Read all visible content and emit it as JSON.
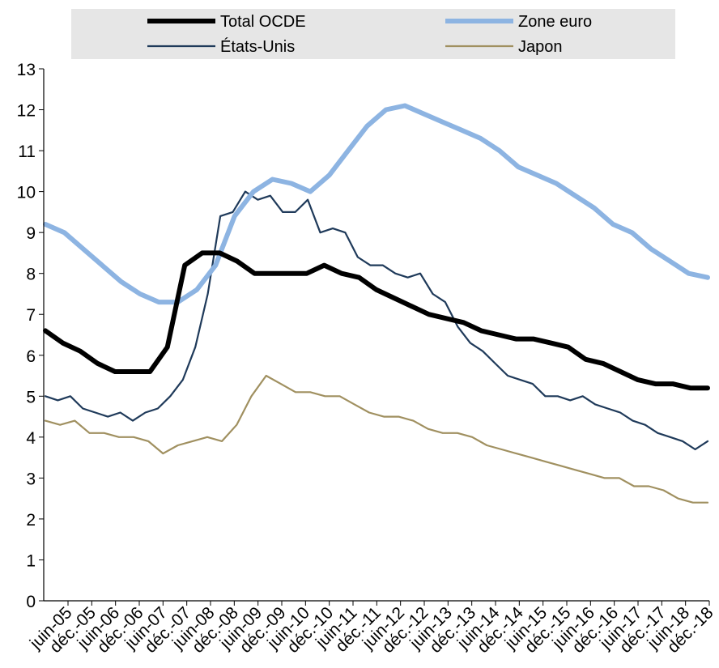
{
  "chart_data": {
    "type": "line",
    "title": "",
    "xlabel": "",
    "ylabel": "",
    "ylim": [
      0,
      13
    ],
    "yticks": [
      0,
      1,
      2,
      3,
      4,
      5,
      6,
      7,
      8,
      9,
      10,
      11,
      12,
      13
    ],
    "grid": false,
    "legend_position": "top",
    "x_tick_labels": [
      "juin-05",
      "déc.-05",
      "juin-06",
      "déc.-06",
      "juin-07",
      "déc.-07",
      "juin-08",
      "déc.-08",
      "juin-09",
      "déc.-09",
      "juin-10",
      "déc.-10",
      "juin-11",
      "déc.-11",
      "juin-12",
      "déc.-12",
      "juin-13",
      "déc.-13",
      "juin-14",
      "déc.-14",
      "juin-15",
      "déc.-15",
      "juin-16",
      "déc.-16",
      "juin-17",
      "déc.-17",
      "juin-18",
      "déc.-18"
    ],
    "series": [
      {
        "name": "Total OCDE",
        "color": "#000000",
        "width": 6,
        "values": [
          6.6,
          6.3,
          6.1,
          5.8,
          5.6,
          5.6,
          5.6,
          6.2,
          8.2,
          8.5,
          8.5,
          8.3,
          8.0,
          8.0,
          8.0,
          8.0,
          8.2,
          8.0,
          7.9,
          7.6,
          7.4,
          7.2,
          7.0,
          6.9,
          6.8,
          6.6,
          6.5,
          6.4,
          6.4,
          6.3,
          6.2,
          5.9,
          5.8,
          5.6,
          5.4,
          5.3,
          5.3,
          5.2,
          5.2
        ]
      },
      {
        "name": "Zone euro",
        "color": "#8db4e2",
        "width": 6,
        "values": [
          9.2,
          9.0,
          8.6,
          8.2,
          7.8,
          7.5,
          7.3,
          7.3,
          7.6,
          8.2,
          9.4,
          10.0,
          10.3,
          10.2,
          10.0,
          10.4,
          11.0,
          11.6,
          12.0,
          12.1,
          11.9,
          11.7,
          11.5,
          11.3,
          11.0,
          10.6,
          10.4,
          10.2,
          9.9,
          9.6,
          9.2,
          9.0,
          8.6,
          8.3,
          8.0,
          7.9
        ]
      },
      {
        "name": "États-Unis",
        "color": "#1f3a5a",
        "width": 2.2,
        "values": [
          5.0,
          4.9,
          5.0,
          4.7,
          4.6,
          4.5,
          4.6,
          4.4,
          4.6,
          4.7,
          5.0,
          5.4,
          6.2,
          7.5,
          9.4,
          9.5,
          10.0,
          9.8,
          9.9,
          9.5,
          9.5,
          9.8,
          9.0,
          9.1,
          9.0,
          8.4,
          8.2,
          8.2,
          8.0,
          7.9,
          8.0,
          7.5,
          7.3,
          6.7,
          6.3,
          6.1,
          5.8,
          5.5,
          5.4,
          5.3,
          5.0,
          5.0,
          4.9,
          5.0,
          4.8,
          4.7,
          4.6,
          4.4,
          4.3,
          4.1,
          4.0,
          3.9,
          3.7,
          3.9
        ]
      },
      {
        "name": "Japon",
        "color": "#a09060",
        "width": 2.2,
        "values": [
          4.4,
          4.3,
          4.4,
          4.1,
          4.1,
          4.0,
          4.0,
          3.9,
          3.6,
          3.8,
          3.9,
          4.0,
          3.9,
          4.3,
          5.0,
          5.5,
          5.3,
          5.1,
          5.1,
          5.0,
          5.0,
          4.8,
          4.6,
          4.5,
          4.5,
          4.4,
          4.2,
          4.1,
          4.1,
          4.0,
          3.8,
          3.7,
          3.6,
          3.5,
          3.4,
          3.3,
          3.2,
          3.1,
          3.0,
          3.0,
          2.8,
          2.8,
          2.7,
          2.5,
          2.4,
          2.4
        ]
      }
    ]
  }
}
